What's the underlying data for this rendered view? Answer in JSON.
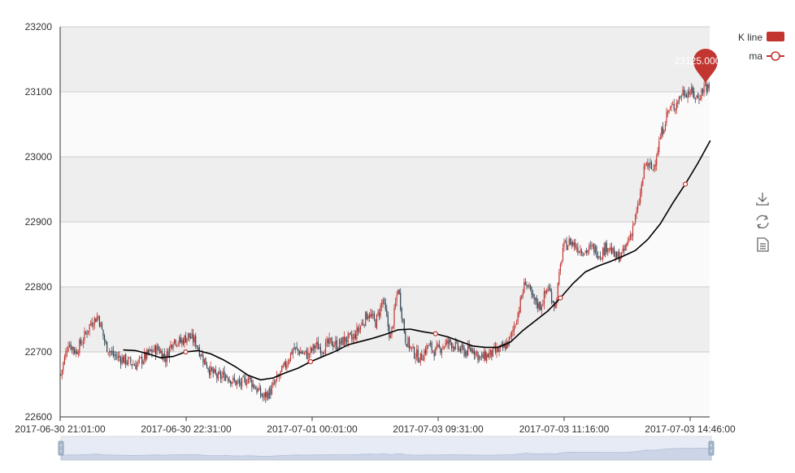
{
  "chart_data": {
    "type": "candlestick",
    "title": "",
    "xlabel": "",
    "ylabel": "",
    "ylim": [
      22600,
      23200
    ],
    "y_ticks": [
      22600,
      22700,
      22800,
      22900,
      23000,
      23100,
      23200
    ],
    "x_tick_labels": [
      "2017-06-30 21:01:00",
      "2017-06-30 22:31:00",
      "2017-07-01 00:01:00",
      "2017-07-03 09:31:00",
      "2017-07-03 11:16:00",
      "2017-07-03 14:46:00"
    ],
    "grid": "horizontal, alternating bands",
    "legend_position": "top-right",
    "series": [
      {
        "name": "K line",
        "kind": "candlestick",
        "close_path": [
          [
            0,
            22665
          ],
          [
            6,
            22715
          ],
          [
            12,
            22700
          ],
          [
            18,
            22720
          ],
          [
            24,
            22745
          ],
          [
            30,
            22755
          ],
          [
            36,
            22710
          ],
          [
            42,
            22695
          ],
          [
            48,
            22690
          ],
          [
            54,
            22685
          ],
          [
            60,
            22680
          ],
          [
            66,
            22690
          ],
          [
            72,
            22700
          ],
          [
            78,
            22705
          ],
          [
            84,
            22690
          ],
          [
            90,
            22720
          ],
          [
            96,
            22715
          ],
          [
            102,
            22725
          ],
          [
            108,
            22715
          ],
          [
            114,
            22690
          ],
          [
            120,
            22670
          ],
          [
            126,
            22660
          ],
          [
            132,
            22665
          ],
          [
            138,
            22655
          ],
          [
            144,
            22650
          ],
          [
            150,
            22660
          ],
          [
            156,
            22645
          ],
          [
            162,
            22630
          ],
          [
            168,
            22640
          ],
          [
            174,
            22660
          ],
          [
            180,
            22680
          ],
          [
            186,
            22705
          ],
          [
            192,
            22700
          ],
          [
            198,
            22695
          ],
          [
            204,
            22710
          ],
          [
            210,
            22705
          ],
          [
            216,
            22715
          ],
          [
            222,
            22710
          ],
          [
            228,
            22720
          ],
          [
            234,
            22720
          ],
          [
            240,
            22740
          ],
          [
            246,
            22760
          ],
          [
            252,
            22745
          ],
          [
            258,
            22780
          ],
          [
            264,
            22720
          ],
          [
            270,
            22800
          ],
          [
            276,
            22720
          ],
          [
            282,
            22700
          ],
          [
            288,
            22690
          ],
          [
            294,
            22710
          ],
          [
            300,
            22700
          ],
          [
            306,
            22710
          ],
          [
            312,
            22715
          ],
          [
            318,
            22705
          ],
          [
            324,
            22700
          ],
          [
            330,
            22705
          ],
          [
            336,
            22690
          ],
          [
            342,
            22695
          ],
          [
            348,
            22700
          ],
          [
            354,
            22705
          ],
          [
            360,
            22720
          ],
          [
            366,
            22760
          ],
          [
            372,
            22810
          ],
          [
            378,
            22780
          ],
          [
            384,
            22770
          ],
          [
            390,
            22800
          ],
          [
            396,
            22770
          ],
          [
            402,
            22860
          ],
          [
            408,
            22870
          ],
          [
            414,
            22860
          ],
          [
            420,
            22855
          ],
          [
            426,
            22860
          ],
          [
            432,
            22850
          ],
          [
            438,
            22865
          ],
          [
            444,
            22845
          ],
          [
            450,
            22850
          ],
          [
            456,
            22880
          ],
          [
            462,
            22920
          ],
          [
            468,
            22990
          ],
          [
            474,
            22980
          ],
          [
            480,
            23030
          ],
          [
            486,
            23070
          ],
          [
            492,
            23080
          ],
          [
            498,
            23100
          ],
          [
            504,
            23100
          ],
          [
            510,
            23090
          ],
          [
            516,
            23110
          ],
          [
            520,
            23100
          ]
        ]
      },
      {
        "name": "ma",
        "kind": "line",
        "points": [
          [
            50,
            22703
          ],
          [
            60,
            22702
          ],
          [
            70,
            22697
          ],
          [
            80,
            22691
          ],
          [
            90,
            22693
          ],
          [
            100,
            22700
          ],
          [
            110,
            22702
          ],
          [
            120,
            22697
          ],
          [
            130,
            22688
          ],
          [
            140,
            22677
          ],
          [
            150,
            22664
          ],
          [
            160,
            22657
          ],
          [
            170,
            22660
          ],
          [
            180,
            22668
          ],
          [
            190,
            22675
          ],
          [
            200,
            22685
          ],
          [
            210,
            22693
          ],
          [
            220,
            22701
          ],
          [
            230,
            22711
          ],
          [
            240,
            22716
          ],
          [
            250,
            22721
          ],
          [
            260,
            22727
          ],
          [
            270,
            22734
          ],
          [
            280,
            22735
          ],
          [
            290,
            22731
          ],
          [
            300,
            22728
          ],
          [
            310,
            22723
          ],
          [
            320,
            22716
          ],
          [
            330,
            22709
          ],
          [
            340,
            22707
          ],
          [
            350,
            22707
          ],
          [
            360,
            22715
          ],
          [
            370,
            22733
          ],
          [
            380,
            22748
          ],
          [
            390,
            22763
          ],
          [
            400,
            22783
          ],
          [
            410,
            22805
          ],
          [
            420,
            22823
          ],
          [
            430,
            22832
          ],
          [
            440,
            22839
          ],
          [
            450,
            22847
          ],
          [
            460,
            22856
          ],
          [
            470,
            22873
          ],
          [
            480,
            22897
          ],
          [
            490,
            22929
          ],
          [
            500,
            22958
          ],
          [
            510,
            22990
          ],
          [
            520,
            23025
          ]
        ],
        "marked_points": [
          100,
          200,
          300,
          400,
          500
        ]
      }
    ],
    "max_marker": {
      "value": 23125,
      "label": "23125.000000",
      "x_index": 518
    },
    "total_points": 520
  },
  "legend": {
    "items": [
      {
        "name": "K line",
        "color": "#c23531",
        "symbol": "rect"
      },
      {
        "name": "ma",
        "color": "#c23531",
        "symbol": "circle-line"
      }
    ]
  },
  "toolbox": {
    "icons": [
      "save-as-image-icon",
      "restore-icon",
      "data-view-icon"
    ]
  },
  "colors": {
    "up": "#c23531",
    "down": "#314656",
    "ma": "#000000",
    "band_dark": "#eeeeee",
    "band_light": "#fafafa",
    "grid": "#cccccc",
    "zoom_fill": "#d2dbee",
    "zoom_border": "#d9d9d9"
  }
}
